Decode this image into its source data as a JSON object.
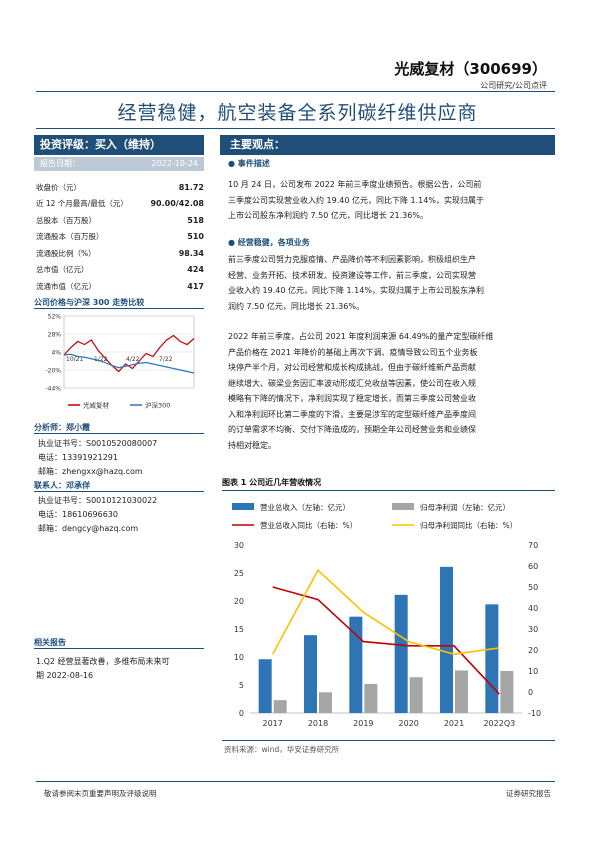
{
  "header": {
    "company": "光威复材（300699）",
    "report_type": "公司研究/公司点评",
    "title": "经营稳健，航空装备全系列碳纤维供应商"
  },
  "left": {
    "rating_label": "投资评级：买入（维持）",
    "date_label": "报告日期：",
    "date_value": "2022-10-24",
    "metrics": [
      {
        "label": "收盘价（元）",
        "value": "81.72"
      },
      {
        "label": "近 12 个月最高/最低（元）",
        "value": "90.00/42.08"
      },
      {
        "label": "总股本（百万股）",
        "value": "518"
      },
      {
        "label": "流通股本（百万股）",
        "value": "510"
      },
      {
        "label": "流通股比例（%）",
        "value": "98.34"
      },
      {
        "label": "总市值（亿元）",
        "value": "424"
      },
      {
        "label": "流通市值（亿元）",
        "value": "417"
      }
    ],
    "price_chart_title": "公司价格与沪深 300 走势比较",
    "analyst1_title": "分析师：郑小霞",
    "analyst1_cert": "执业证书号：S0010520080007",
    "analyst1_phone": "电话：13391921291",
    "analyst1_email": "邮箱：zhengxx@hazq.com",
    "analyst2_title": "联系人：邓承佯",
    "analyst2_cert": "执业证书号：S0010121030022",
    "analyst2_phone": "电话：18610696630",
    "analyst2_email": "邮箱：dengcy@hazq.com",
    "related_title": "相关报告",
    "related_1": "1.Q2 经营显著改善，多维布局未来可",
    "related_2": "期 2022-08-16"
  },
  "right": {
    "points_label": "主要观点：",
    "event_title": "事件描述",
    "event_lines": [
      "10 月 24 日，公司发布 2022 年前三季度业绩预告。根据公告，公司前",
      "三季度公司实现营业收入约 19.40 亿元，同比下降 1.14%，实现归属于",
      "上市公司股东净利润约 7.50 亿元，同比增长 21.36%。"
    ],
    "biz_title": "经营稳健，各项业务",
    "biz_lines": [
      "前三季度公司努力克服疫情、产品降价等不利因素影响，积极组织生产",
      "经营、业务开拓、技术研发、投资建设等工作，前三季度，公司实现营",
      "业收入约 19.40 亿元，同比下降 1.14%，实现归属于上市公司股东净利",
      "润约 7.50 亿元，同比增长 21.36%。"
    ],
    "detail_lines": [
      "2022 年前三季度，占公司 2021 年度利润来源 64.49%的量产定型碳纤维",
      "产品价格在 2021 年降价的基础上再次下调、疫情导致公司五个业务板",
      "块停产半个月，对公司经营和成长构成挑战，但由于碳纤维新产品贡献",
      "继续增大、碳梁业务因汇率波动形成汇兑收益等因素，使公司在收入规",
      "模略有下降的情况下，净利润实现了稳定增长，而第三季度公司营业收",
      "入和净利润环比第二季度的下滑，主要是涉军的定型碳纤维产品季度间",
      "的订单需求不均衡、交付下降造成的，预期全年公司经营业务和业绩保",
      "持相对稳定。"
    ],
    "figure_title": "图表 1 公司近几年营收情况",
    "source": "资料来源：wind，华安证券研究所"
  },
  "price_chart": {
    "ytick_labels": [
      "52%",
      "28%",
      "4%",
      "-20%",
      "-44%"
    ],
    "yticks": [
      52,
      28,
      4,
      -20,
      -44
    ],
    "xtick_labels": [
      "10/21",
      "1/22",
      "4/22",
      "7/22"
    ],
    "legend": [
      "光威复材",
      "沪深300"
    ],
    "colors": {
      "company": "#c00000",
      "index": "#2e75b6"
    },
    "company": [
      0,
      10,
      18,
      14,
      20,
      6,
      -4,
      -14,
      -22,
      -12,
      -18,
      -8,
      2,
      -2,
      10,
      20,
      26,
      18,
      14,
      22
    ],
    "index": [
      0,
      1,
      -2,
      -3,
      -5,
      -7,
      -10,
      -14,
      -17,
      -15,
      -13,
      -11,
      -10,
      -12,
      -14,
      -16,
      -18,
      -20,
      -22,
      -24
    ]
  },
  "footer": {
    "left": "敬请参阅末页重要声明及评级说明",
    "right": "证券研究报告"
  },
  "chart_data": {
    "type": "bar",
    "categories": [
      "2017",
      "2018",
      "2019",
      "2020",
      "2021",
      "2022Q3"
    ],
    "series": [
      {
        "name": "营业总收入（左轴：亿元）",
        "type": "bar",
        "axis": "left",
        "color": "#2e75b6",
        "values": [
          9.6,
          13.9,
          17.2,
          21.1,
          26.1,
          19.4
        ]
      },
      {
        "name": "归母净利润（左轴：亿元）",
        "type": "bar",
        "axis": "left",
        "color": "#a6a6a6",
        "values": [
          2.3,
          3.7,
          5.2,
          6.4,
          7.6,
          7.5
        ]
      },
      {
        "name": "营业总收入同比（右轴：%）",
        "type": "line",
        "axis": "right",
        "color": "#c00000",
        "values": [
          50,
          44,
          24,
          22,
          22,
          -1
        ]
      },
      {
        "name": "归母净利润同比（右轴：%）",
        "type": "line",
        "axis": "right",
        "color": "#ffc000",
        "values": [
          18,
          58,
          38,
          24,
          18,
          21
        ]
      }
    ],
    "ylim_left": [
      0,
      30
    ],
    "ylim_right": [
      -10,
      70
    ],
    "yticks_left": [
      "0",
      "5",
      "10",
      "15",
      "20",
      "25",
      "30"
    ],
    "yticks_right": [
      "-10",
      "0",
      "10",
      "20",
      "30",
      "40",
      "50",
      "60",
      "70"
    ],
    "grid": false,
    "legend_position": "top"
  }
}
